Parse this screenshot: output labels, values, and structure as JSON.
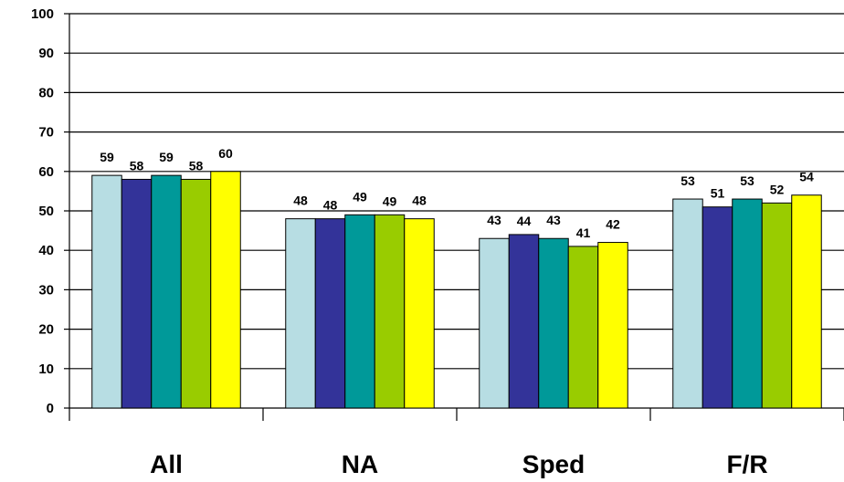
{
  "chart_data": {
    "type": "bar",
    "categories": [
      "All",
      "NA",
      "Sped",
      "F/R"
    ],
    "series": [
      {
        "values": [
          59,
          48,
          43,
          53
        ],
        "color": "#B7DDE3"
      },
      {
        "values": [
          58,
          48,
          44,
          51
        ],
        "color": "#333399"
      },
      {
        "values": [
          59,
          49,
          43,
          53
        ],
        "color": "#009999"
      },
      {
        "values": [
          58,
          49,
          41,
          52
        ],
        "color": "#99CC00"
      },
      {
        "values": [
          60,
          48,
          42,
          54
        ],
        "color": "#FFFF00"
      }
    ],
    "ylim": [
      0,
      100
    ],
    "yticks": [
      0,
      10,
      20,
      30,
      40,
      50,
      60,
      70,
      80,
      90,
      100
    ],
    "grid": true,
    "legend": "none",
    "data_labels": true
  }
}
